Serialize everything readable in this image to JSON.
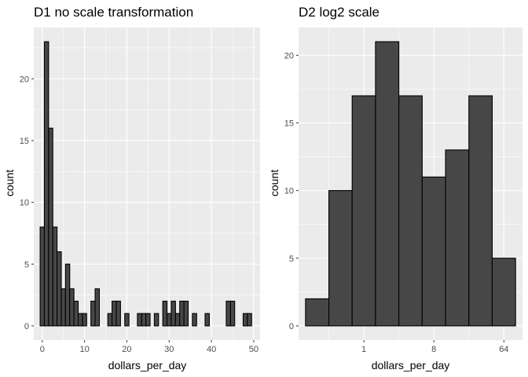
{
  "chart_data": [
    {
      "type": "bar",
      "title": "D1 no scale transformation",
      "xlabel": "dollars_per_day",
      "ylabel": "count",
      "xlim": [
        -2,
        51.5
      ],
      "ylim": [
        -1.15,
        24.15
      ],
      "x_ticks": [
        0,
        10,
        20,
        30,
        40,
        50
      ],
      "y_ticks": [
        0,
        5,
        10,
        15,
        20
      ],
      "bin_width": 1,
      "bins": [
        0,
        1,
        2,
        3,
        4,
        5,
        6,
        7,
        8,
        9,
        10,
        11,
        12,
        13,
        14,
        15,
        16,
        17,
        18,
        19,
        20,
        21,
        22,
        23,
        24,
        25,
        26,
        27,
        28,
        29,
        30,
        31,
        32,
        33,
        34,
        35,
        36,
        37,
        38,
        39,
        40,
        41,
        42,
        43,
        44,
        45,
        46,
        47,
        48,
        49
      ],
      "values": [
        8,
        23,
        16,
        8,
        6,
        3,
        5,
        3,
        2,
        1,
        1,
        0,
        2,
        3,
        0,
        0,
        1,
        2,
        2,
        0,
        1,
        0,
        0,
        1,
        1,
        1,
        0,
        1,
        0,
        2,
        1,
        2,
        1,
        2,
        2,
        0,
        1,
        0,
        0,
        1,
        0,
        0,
        0,
        0,
        2,
        2,
        0,
        0,
        1,
        1
      ],
      "grid": true
    },
    {
      "type": "bar",
      "title": "D2 log2 scale",
      "xlabel": "dollars_per_day",
      "ylabel": "count",
      "x_scale": "log2",
      "xlim": [
        0.144,
        111.2
      ],
      "ylim": [
        -1.05,
        22.05
      ],
      "x_ticks": [
        1,
        8,
        64
      ],
      "y_ticks": [
        0,
        5,
        10,
        15,
        20
      ],
      "bin_edges": [
        0.177,
        0.354,
        0.707,
        1.414,
        2.828,
        5.657,
        11.31,
        22.63,
        45.25,
        90.51
      ],
      "values": [
        2,
        10,
        17,
        21,
        17,
        11,
        13,
        17,
        5
      ],
      "grid": true
    }
  ],
  "colors": {
    "panel": "#ebebeb",
    "grid_major": "#ffffff",
    "bar_fill": "#474747",
    "bar_outline": "#000000",
    "tick": "#333333"
  }
}
